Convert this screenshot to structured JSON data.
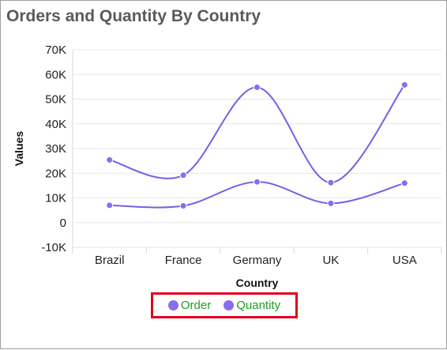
{
  "colors": {
    "series_line": "#7b5ce8",
    "series_marker": "#8a6cf0",
    "legend_text": "#1aa11a",
    "highlight_box": "#e0001b",
    "gridline": "#e6e6e6",
    "title": "#5a5a5a"
  },
  "chart_data": {
    "type": "line",
    "title": "Orders and Quantity By Country",
    "xlabel": "Country",
    "ylabel": "Values",
    "categories": [
      "Brazil",
      "France",
      "Germany",
      "UK",
      "USA"
    ],
    "ylim": [
      -10000,
      70000
    ],
    "yticks": [
      -10000,
      0,
      10000,
      20000,
      30000,
      40000,
      50000,
      60000,
      70000
    ],
    "ytick_labels": [
      "-10K",
      "0",
      "10K",
      "20K",
      "30K",
      "40K",
      "50K",
      "60K",
      "70K"
    ],
    "grid": true,
    "smooth": true,
    "legend_position": "bottom",
    "series": [
      {
        "name": "Order",
        "values": [
          7000,
          6800,
          16500,
          7800,
          16000
        ]
      },
      {
        "name": "Quantity",
        "values": [
          25400,
          19200,
          54800,
          16200,
          55800
        ]
      }
    ]
  },
  "legend": {
    "highlighted": true,
    "items": [
      {
        "label": "Order",
        "marker": "circle"
      },
      {
        "label": "Quantity",
        "marker": "circle"
      }
    ]
  }
}
